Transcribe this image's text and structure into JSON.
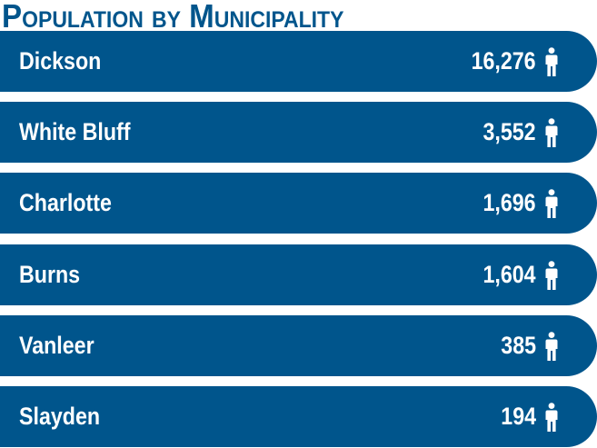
{
  "colors": {
    "bar": "#00558c",
    "title": "#00558c",
    "text": "#ffffff"
  },
  "icon": "person-icon",
  "chart_data": {
    "type": "bar",
    "title": "Population by Municipality",
    "xlabel": "",
    "ylabel": "",
    "categories": [
      "Dickson",
      "White Bluff",
      "Charlotte",
      "Burns",
      "Vanleer",
      "Slayden"
    ],
    "values": [
      16276,
      3552,
      1696,
      1604,
      385,
      194
    ],
    "value_labels": [
      "16,276",
      "3,552",
      "1,696",
      "1,604",
      "385",
      "194"
    ]
  }
}
